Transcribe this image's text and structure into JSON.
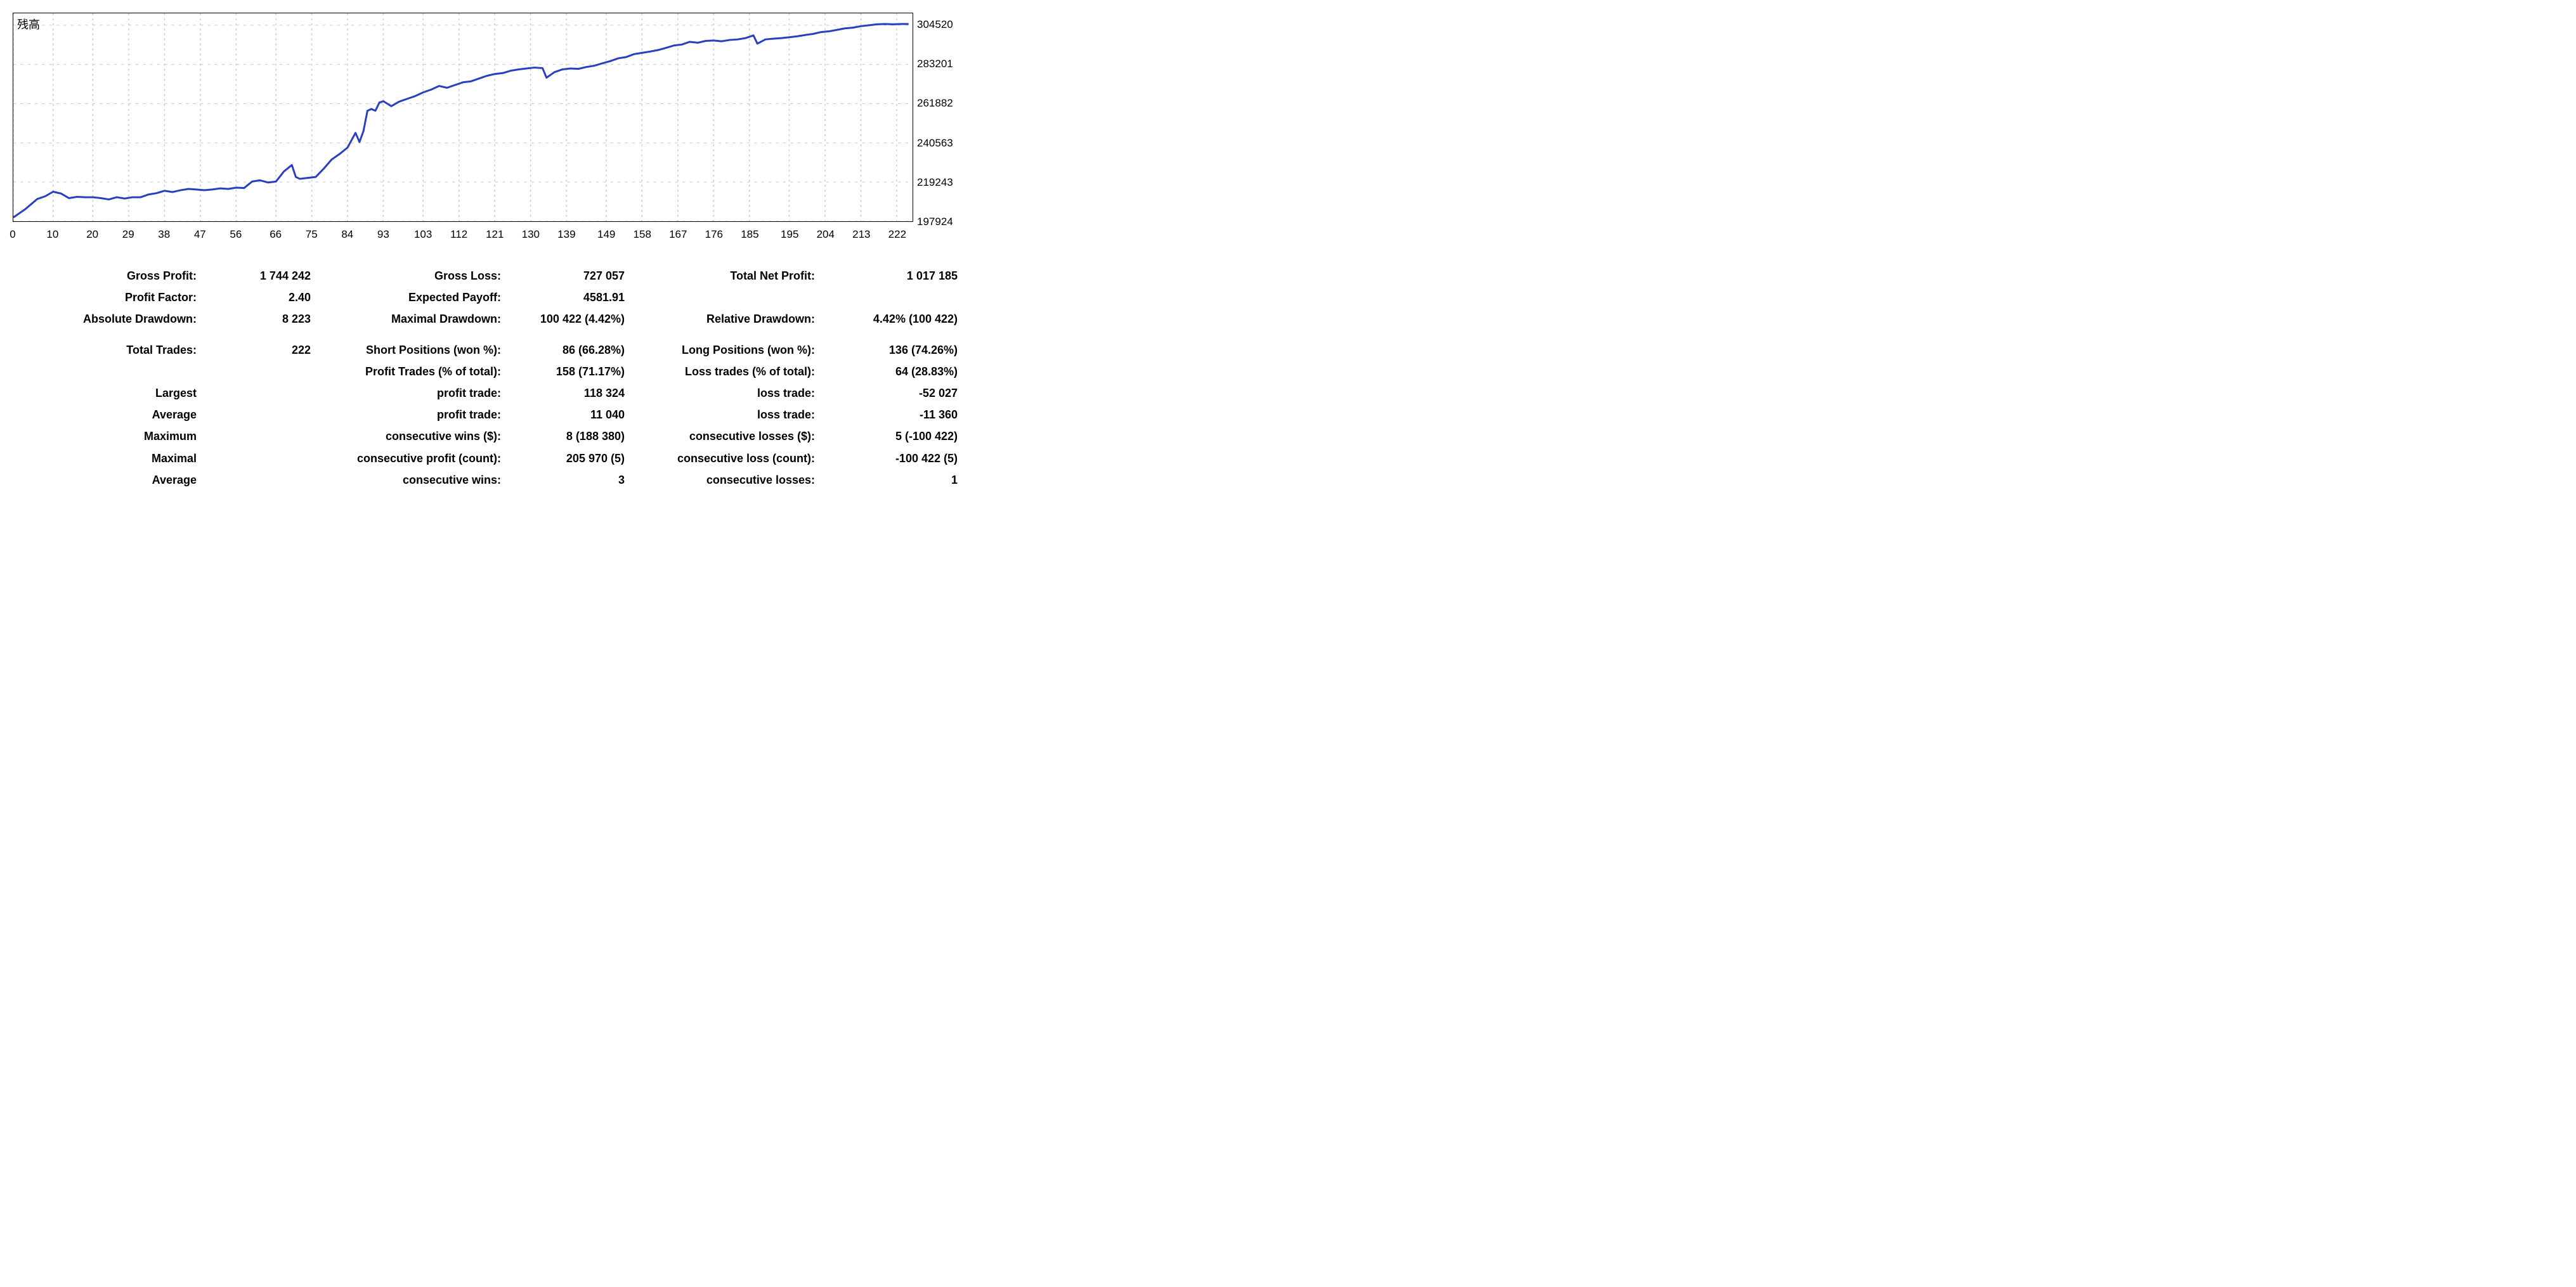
{
  "chart": {
    "type": "line",
    "label_topleft": "残高",
    "background_color": "#ffffff",
    "border_color": "#000000",
    "grid_color": "#c8c8c8",
    "grid_dash": "3,5",
    "line_color": "#2a3fbf",
    "line_width": 3,
    "xlim": [
      0,
      226
    ],
    "ylim": [
      197924,
      311000
    ],
    "x_ticks": [
      0,
      10,
      20,
      29,
      38,
      47,
      56,
      66,
      75,
      84,
      93,
      103,
      112,
      121,
      130,
      139,
      149,
      158,
      167,
      176,
      185,
      195,
      204,
      213,
      222
    ],
    "x_tick_labels": [
      "0",
      "10",
      "20",
      "29",
      "38",
      "47",
      "56",
      "66",
      "75",
      "84",
      "93",
      "103",
      "112",
      "121",
      "130",
      "139",
      "149",
      "158",
      "167",
      "176",
      "185",
      "195",
      "204",
      "213",
      "222"
    ],
    "y_ticks": [
      197924,
      219243,
      240563,
      261882,
      283201,
      304520
    ],
    "y_tick_labels": [
      "197924",
      "219243",
      "240563",
      "261882",
      "283201",
      "304520"
    ],
    "tick_fontsize": 17,
    "points": [
      [
        0,
        200000
      ],
      [
        3,
        204500
      ],
      [
        6,
        210000
      ],
      [
        8,
        211500
      ],
      [
        10,
        214000
      ],
      [
        12,
        213000
      ],
      [
        14,
        210500
      ],
      [
        16,
        211200
      ],
      [
        18,
        211000
      ],
      [
        20,
        211000
      ],
      [
        22,
        210500
      ],
      [
        24,
        209800
      ],
      [
        26,
        211000
      ],
      [
        28,
        210300
      ],
      [
        30,
        211000
      ],
      [
        32,
        211000
      ],
      [
        34,
        212500
      ],
      [
        36,
        213200
      ],
      [
        38,
        214500
      ],
      [
        40,
        213800
      ],
      [
        42,
        214800
      ],
      [
        44,
        215500
      ],
      [
        46,
        215200
      ],
      [
        48,
        214800
      ],
      [
        50,
        215200
      ],
      [
        52,
        215800
      ],
      [
        54,
        215500
      ],
      [
        56,
        216200
      ],
      [
        58,
        216000
      ],
      [
        60,
        219500
      ],
      [
        62,
        220200
      ],
      [
        64,
        219000
      ],
      [
        66,
        219500
      ],
      [
        68,
        225000
      ],
      [
        70,
        228500
      ],
      [
        71,
        222000
      ],
      [
        72,
        221000
      ],
      [
        74,
        221500
      ],
      [
        76,
        222000
      ],
      [
        78,
        226500
      ],
      [
        80,
        231500
      ],
      [
        82,
        234500
      ],
      [
        84,
        238000
      ],
      [
        85,
        242000
      ],
      [
        86,
        246000
      ],
      [
        87,
        241000
      ],
      [
        88,
        247000
      ],
      [
        89,
        258000
      ],
      [
        90,
        259000
      ],
      [
        91,
        258000
      ],
      [
        92,
        262500
      ],
      [
        93,
        263200
      ],
      [
        95,
        260500
      ],
      [
        97,
        263000
      ],
      [
        99,
        264500
      ],
      [
        101,
        266000
      ],
      [
        103,
        268000
      ],
      [
        105,
        269500
      ],
      [
        107,
        271500
      ],
      [
        109,
        270500
      ],
      [
        111,
        272000
      ],
      [
        113,
        273500
      ],
      [
        115,
        274000
      ],
      [
        117,
        275500
      ],
      [
        119,
        277000
      ],
      [
        121,
        278000
      ],
      [
        123,
        278500
      ],
      [
        125,
        279800
      ],
      [
        127,
        280500
      ],
      [
        129,
        281000
      ],
      [
        131,
        281500
      ],
      [
        133,
        281200
      ],
      [
        134,
        276000
      ],
      [
        136,
        279000
      ],
      [
        138,
        280500
      ],
      [
        140,
        281000
      ],
      [
        142,
        280800
      ],
      [
        144,
        281800
      ],
      [
        146,
        282500
      ],
      [
        148,
        283800
      ],
      [
        150,
        285000
      ],
      [
        152,
        286500
      ],
      [
        154,
        287200
      ],
      [
        156,
        288800
      ],
      [
        158,
        289500
      ],
      [
        160,
        290200
      ],
      [
        162,
        291000
      ],
      [
        164,
        292200
      ],
      [
        166,
        293500
      ],
      [
        168,
        294000
      ],
      [
        170,
        295500
      ],
      [
        172,
        295000
      ],
      [
        174,
        296000
      ],
      [
        176,
        296200
      ],
      [
        178,
        295800
      ],
      [
        180,
        296500
      ],
      [
        182,
        296800
      ],
      [
        184,
        297500
      ],
      [
        186,
        299000
      ],
      [
        187,
        294500
      ],
      [
        189,
        296800
      ],
      [
        191,
        297200
      ],
      [
        193,
        297500
      ],
      [
        195,
        298000
      ],
      [
        197,
        298500
      ],
      [
        199,
        299200
      ],
      [
        201,
        299800
      ],
      [
        203,
        300800
      ],
      [
        205,
        301200
      ],
      [
        207,
        302000
      ],
      [
        209,
        302800
      ],
      [
        211,
        303200
      ],
      [
        213,
        304000
      ],
      [
        215,
        304500
      ],
      [
        217,
        305000
      ],
      [
        219,
        305200
      ],
      [
        221,
        305000
      ],
      [
        223,
        305200
      ],
      [
        225,
        305200
      ]
    ]
  },
  "stats": {
    "rows": [
      {
        "a_lbl": "Gross Profit:",
        "a_val": "1 744 242",
        "b_lbl": "Gross Loss:",
        "b_val": "727 057",
        "c_lbl": "Total Net Profit:",
        "c_val": "1 017 185"
      },
      {
        "a_lbl": "Profit Factor:",
        "a_val": "2.40",
        "b_lbl": "Expected Payoff:",
        "b_val": "4581.91",
        "c_lbl": "",
        "c_val": ""
      },
      {
        "a_lbl": "Absolute Drawdown:",
        "a_val": "8 223",
        "b_lbl": "Maximal Drawdown:",
        "b_val": "100 422 (4.42%)",
        "c_lbl": "Relative Drawdown:",
        "c_val": "4.42% (100 422)"
      },
      {
        "gap": true,
        "a_lbl": "Total Trades:",
        "a_val": "222",
        "b_lbl": "Short Positions (won %):",
        "b_val": "86 (66.28%)",
        "c_lbl": "Long Positions (won %):",
        "c_val": "136 (74.26%)"
      },
      {
        "a_lbl": "",
        "a_val": "",
        "b_lbl": "Profit Trades (% of total):",
        "b_val": "158 (71.17%)",
        "c_lbl": "Loss trades (% of total):",
        "c_val": "64 (28.83%)"
      },
      {
        "a_lbl": "Largest",
        "a_val": "",
        "b_lbl": "profit trade:",
        "b_val": "118 324",
        "c_lbl": "loss trade:",
        "c_val": "-52 027"
      },
      {
        "a_lbl": "Average",
        "a_val": "",
        "b_lbl": "profit trade:",
        "b_val": "11 040",
        "c_lbl": "loss trade:",
        "c_val": "-11 360"
      },
      {
        "a_lbl": "Maximum",
        "a_val": "",
        "b_lbl": "consecutive wins ($):",
        "b_val": "8 (188 380)",
        "c_lbl": "consecutive losses ($):",
        "c_val": "5 (-100 422)"
      },
      {
        "a_lbl": "Maximal",
        "a_val": "",
        "b_lbl": "consecutive profit (count):",
        "b_val": "205 970 (5)",
        "c_lbl": "consecutive loss (count):",
        "c_val": "-100 422 (5)"
      },
      {
        "a_lbl": "Average",
        "a_val": "",
        "b_lbl": "consecutive wins:",
        "b_val": "3",
        "c_lbl": "consecutive losses:",
        "c_val": "1"
      }
    ]
  }
}
